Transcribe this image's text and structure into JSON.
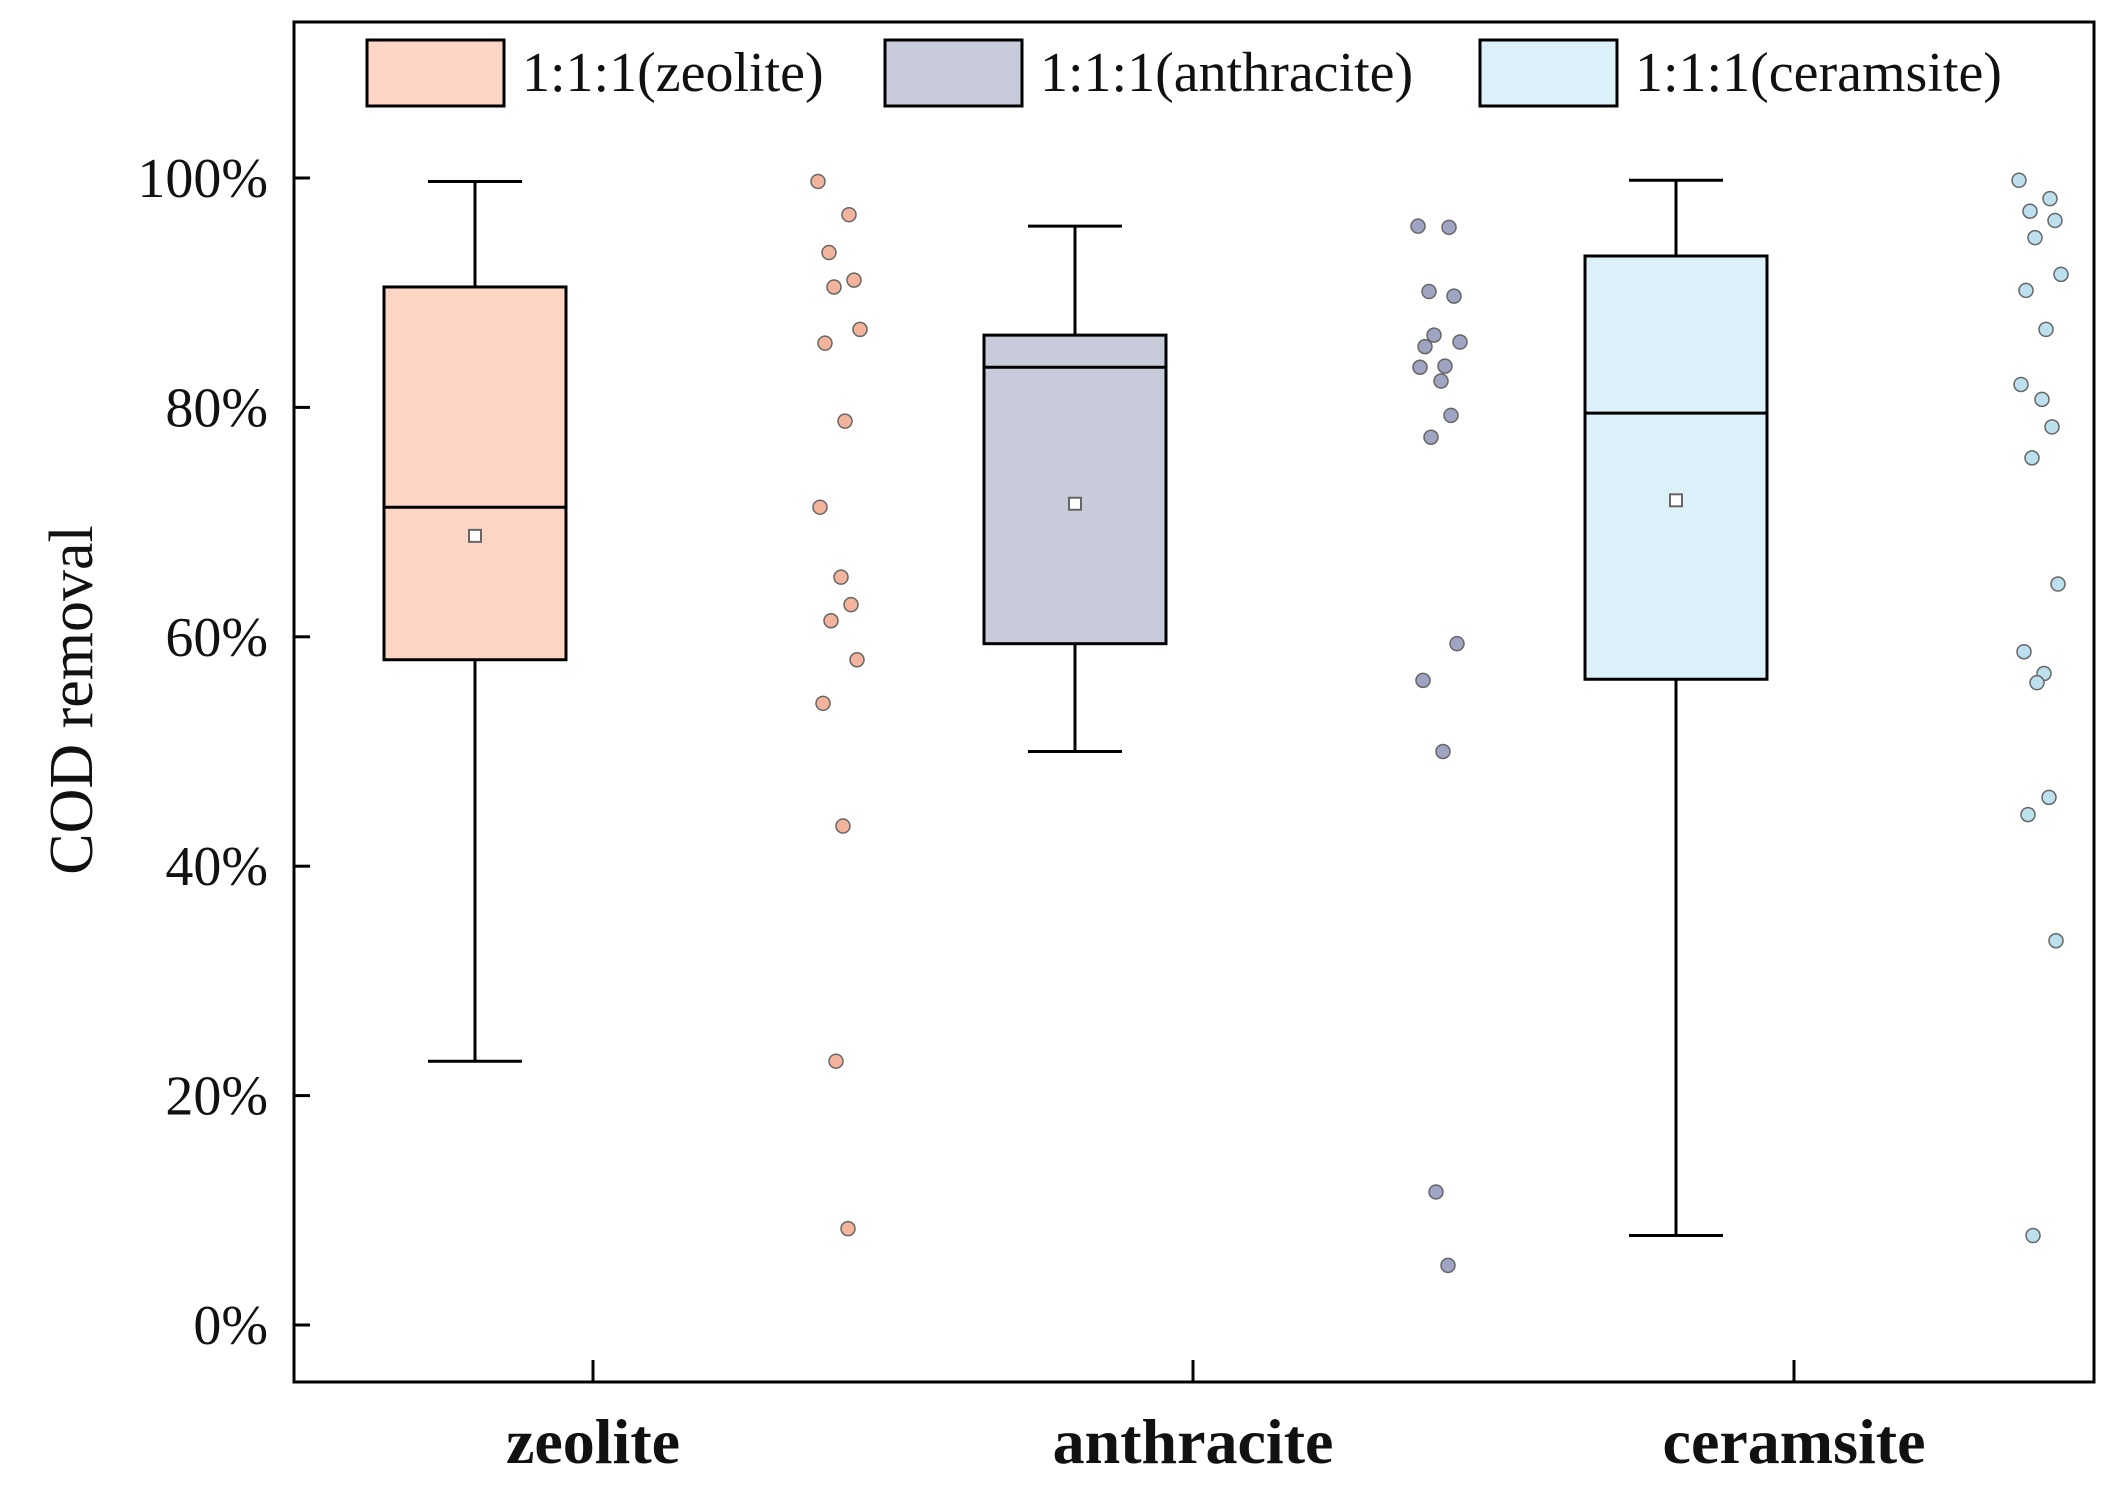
{
  "chart_data": {
    "type": "box",
    "ylabel": "COD removal",
    "xlabel": "",
    "ylim": [
      0,
      1.1
    ],
    "yticks": [
      0,
      0.2,
      0.4,
      0.6,
      0.8,
      1.0
    ],
    "ytick_labels": [
      "0%",
      "20%",
      "40%",
      "60%",
      "80%",
      "100%"
    ],
    "grid": false,
    "legend_position": "top",
    "categories": [
      "zeolite",
      "anthracite",
      "ceramsite"
    ],
    "series": [
      {
        "name": "1:1:1(zeolite)",
        "category": "zeolite",
        "color": "#fdd5c4",
        "point_color": "#f4b49c",
        "whisker_low": 0.23,
        "q1": 0.58,
        "median": 0.713,
        "q3": 0.905,
        "whisker_high": 0.997,
        "mean": 0.688,
        "points": [
          0.997,
          0.968,
          0.935,
          0.911,
          0.905,
          0.868,
          0.856,
          0.788,
          0.713,
          0.652,
          0.628,
          0.614,
          0.58,
          0.542,
          0.435,
          0.23,
          0.084
        ]
      },
      {
        "name": "1:1:1(anthracite)",
        "category": "anthracite",
        "color": "#c8cbd9",
        "point_color": "#9fa4c3",
        "whisker_low": 0.5,
        "q1": 0.594,
        "median": 0.835,
        "q3": 0.863,
        "whisker_high": 0.958,
        "mean": 0.716,
        "points": [
          0.958,
          0.957,
          0.901,
          0.897,
          0.863,
          0.857,
          0.853,
          0.836,
          0.835,
          0.823,
          0.793,
          0.774,
          0.594,
          0.562,
          0.5,
          0.116,
          0.052
        ]
      },
      {
        "name": "1:1:1(ceramsite)",
        "category": "ceramsite",
        "color": "#dcf1fa",
        "point_color": "#bde0ef",
        "whisker_low": 0.078,
        "q1": 0.563,
        "median": 0.795,
        "q3": 0.932,
        "whisker_high": 0.998,
        "mean": 0.719,
        "points": [
          0.998,
          0.982,
          0.971,
          0.963,
          0.948,
          0.916,
          0.902,
          0.868,
          0.82,
          0.807,
          0.783,
          0.756,
          0.646,
          0.587,
          0.568,
          0.56,
          0.46,
          0.445,
          0.335,
          0.078
        ]
      }
    ]
  }
}
